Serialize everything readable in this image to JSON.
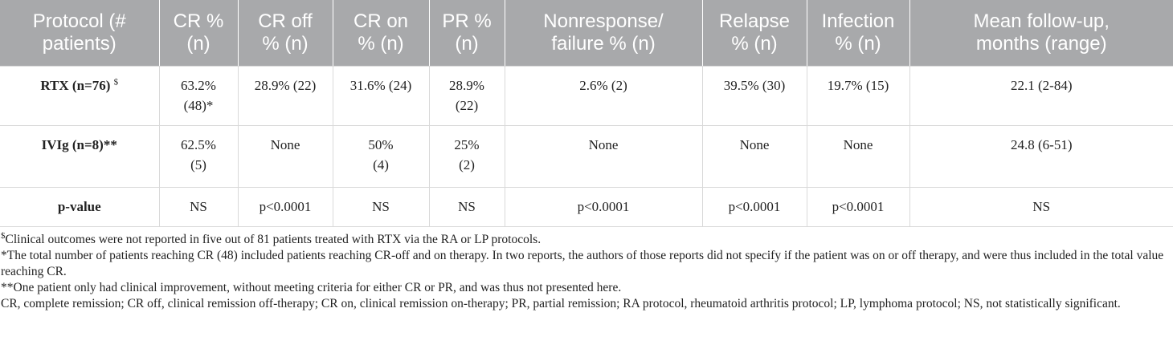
{
  "table": {
    "headers": [
      "Protocol (#\npatients)",
      "CR %\n(n)",
      "CR off\n% (n)",
      "CR on\n% (n)",
      "PR %\n(n)",
      "Nonresponse/\nfailure % (n)",
      "Relapse\n% (n)",
      "Infection\n% (n)",
      "Mean follow-up,\nmonths (range)"
    ],
    "rows": [
      {
        "protocol": "RTX (n=76)",
        "protocol_mark": "$",
        "cells": [
          "63.2%\n(48)*",
          "28.9% (22)",
          "31.6% (24)",
          "28.9%\n(22)",
          "2.6% (2)",
          "39.5% (30)",
          "19.7% (15)",
          "22.1 (2-84)"
        ]
      },
      {
        "protocol": "IVIg (n=8)**",
        "protocol_mark": "",
        "cells": [
          "62.5%\n(5)",
          "None",
          "50%\n(4)",
          "25%\n(2)",
          "None",
          "None",
          "None",
          "24.8 (6-51)"
        ]
      },
      {
        "protocol": "p-value",
        "protocol_mark": "",
        "cells": [
          "NS",
          "p<0.0001",
          "NS",
          "NS",
          "p<0.0001",
          "p<0.0001",
          "p<0.0001",
          "NS"
        ]
      }
    ]
  },
  "footnotes": {
    "note1_mark": "$",
    "note1_text": "Clinical outcomes were not reported in five out of 81 patients treated with RTX via the RA or LP protocols.",
    "note2": "*The total number of patients reaching CR (48) included patients reaching CR-off and on therapy. In two reports, the authors of those reports did not specify if the patient was on or off therapy, and were thus included in the total value reaching CR.",
    "note3": "**One patient only had clinical improvement, without meeting criteria for either CR or PR, and was thus not presented here.",
    "abbreviations": "CR, complete remission; CR off, clinical remission off-therapy; CR on, clinical remission on-therapy; PR, partial remission; RA protocol, rheumatoid arthritis protocol; LP, lymphoma protocol; NS, not statistically significant."
  }
}
